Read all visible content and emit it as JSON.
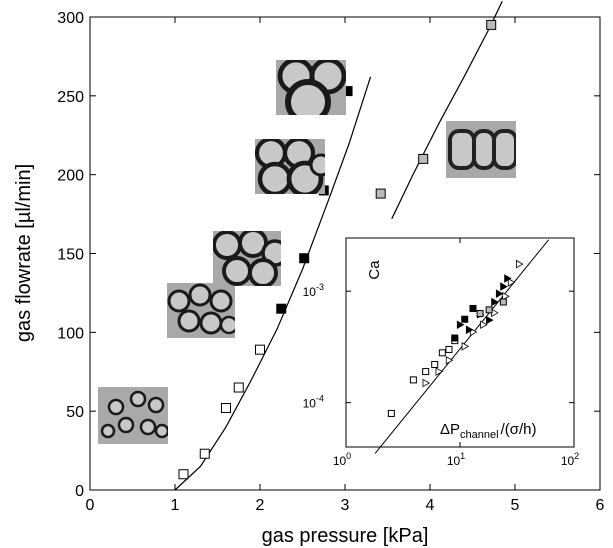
{
  "chart_data": [
    {
      "type": "scatter",
      "xlabel": "gas pressure [kPa]",
      "ylabel": "gas flowrate [µl/min]",
      "xlim": [
        0,
        6
      ],
      "ylim": [
        0,
        300
      ],
      "xticks": [
        "0",
        "1",
        "2",
        "3",
        "4",
        "5",
        "6"
      ],
      "yticks": [
        "0",
        "50",
        "100",
        "150",
        "200",
        "250",
        "300"
      ],
      "grid": false,
      "series": [
        {
          "marker": "open-square",
          "color": "#000000",
          "x": [
            1.1,
            1.35,
            1.6,
            1.75,
            2.0
          ],
          "y": [
            10,
            23,
            52,
            65,
            89
          ]
        },
        {
          "marker": "filled-square",
          "color": "#000000",
          "x": [
            2.25,
            2.52,
            2.75,
            3.03
          ],
          "y": [
            115,
            147,
            190,
            253
          ]
        },
        {
          "marker": "gray-square",
          "color": "#bbbbbb",
          "x": [
            3.42,
            3.92,
            4.72
          ],
          "y": [
            188,
            210,
            295
          ]
        }
      ],
      "fit_lines": [
        {
          "x": [
            1.0,
            1.3,
            1.6,
            1.9,
            2.2,
            2.5,
            2.8,
            3.05,
            3.3
          ],
          "y": [
            0,
            15,
            40,
            70,
            102,
            140,
            183,
            220,
            262
          ]
        },
        {
          "x": [
            3.55,
            3.8,
            4.1,
            4.4,
            4.7,
            4.85
          ],
          "y": [
            172,
            200,
            232,
            262,
            293,
            310
          ]
        }
      ],
      "insets": [
        {
          "kind": "image",
          "description": "bubbles-1",
          "x": 0.5,
          "y": 47
        },
        {
          "kind": "image",
          "description": "bubbles-2",
          "x": 1.3,
          "y": 114
        },
        {
          "kind": "image",
          "description": "bubbles-3",
          "x": 1.85,
          "y": 147
        },
        {
          "kind": "image",
          "description": "bubbles-4",
          "x": 2.35,
          "y": 205
        },
        {
          "kind": "image",
          "description": "bubbles-5",
          "x": 2.6,
          "y": 255
        },
        {
          "kind": "image",
          "description": "bubbles-6",
          "x": 4.6,
          "y": 216
        }
      ]
    },
    {
      "type": "scatter",
      "xlabel": "ΔP",
      "xlabel_sub": "channel",
      "xlabel_rest": "/(σ/h)",
      "ylabel": "Ca",
      "xscale": "log",
      "yscale": "log",
      "xlim": [
        1,
        100
      ],
      "ylim": [
        4e-05,
        0.003
      ],
      "xticks": [
        {
          "base": "10",
          "exp": "0"
        },
        {
          "base": "10",
          "exp": "1"
        },
        {
          "base": "10",
          "exp": "2"
        }
      ],
      "yticks": [
        {
          "base": "10",
          "exp": "-4"
        },
        {
          "base": "10",
          "exp": "-3"
        }
      ],
      "series": [
        {
          "marker": "open-square",
          "color": "#000000",
          "x": [
            2.5,
            3.9,
            5.0,
            6.0,
            7.0,
            8.0,
            9.0
          ],
          "y": [
            8e-05,
            0.00016,
            0.00019,
            0.00022,
            0.00028,
            0.0003,
            0.00036
          ]
        },
        {
          "marker": "open-triangle",
          "color": "#000000",
          "x": [
            5.0,
            6.5,
            8.0,
            11,
            13,
            16,
            20,
            25,
            28,
            33
          ],
          "y": [
            0.00015,
            0.00019,
            0.00024,
            0.00032,
            0.00043,
            0.0005,
            0.00064,
            0.0009,
            0.0012,
            0.00175
          ]
        },
        {
          "marker": "filled-triangle",
          "color": "#000000",
          "x": [
            10,
            12,
            15,
            18,
            20,
            22,
            24,
            26
          ],
          "y": [
            0.0005,
            0.00045,
            0.00062,
            0.00055,
            0.0008,
            0.00095,
            0.0011,
            0.0013
          ]
        },
        {
          "marker": "filled-square",
          "color": "#000000",
          "x": [
            9.0,
            11,
            13
          ],
          "y": [
            0.00038,
            0.00056,
            0.0007
          ]
        },
        {
          "marker": "gray-square",
          "color": "#bbbbbb",
          "x": [
            15,
            18,
            24
          ],
          "y": [
            0.00063,
            0.00068,
            0.0008
          ]
        }
      ],
      "fit_line": {
        "x": [
          1.8,
          60
        ],
        "y": [
          3.5e-05,
          0.0029
        ]
      }
    }
  ]
}
